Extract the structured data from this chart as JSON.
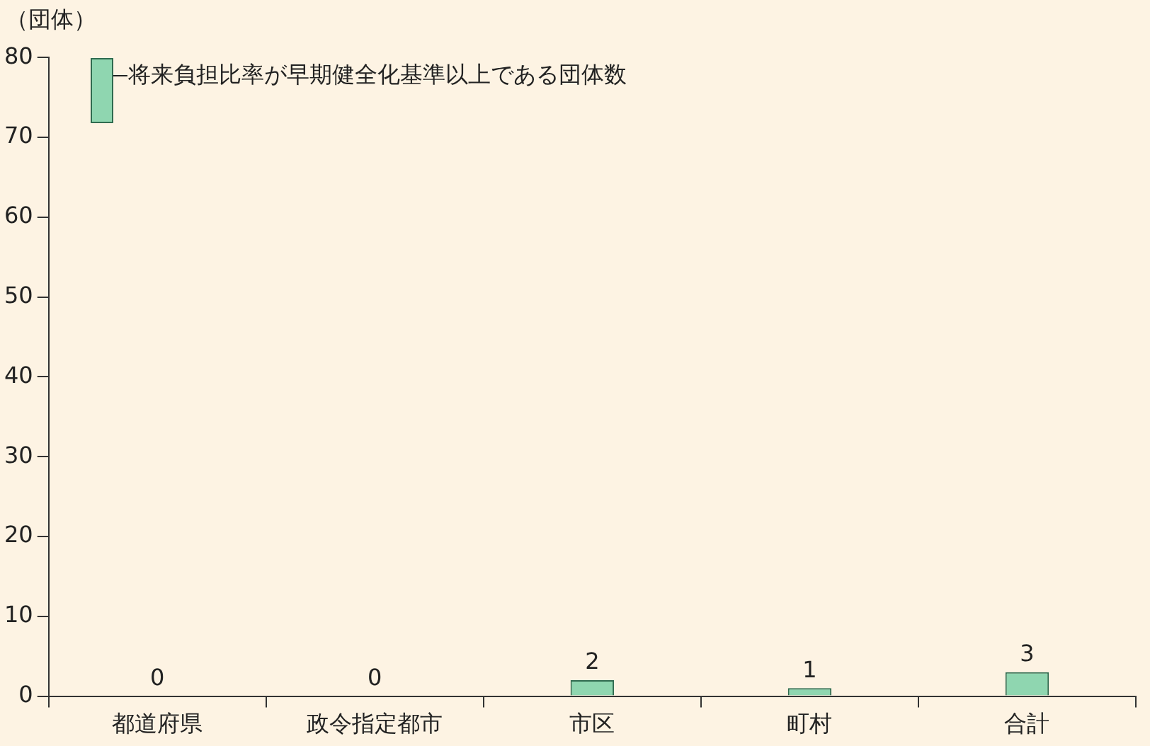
{
  "chart_data": {
    "type": "bar",
    "ylabel": "（団体）",
    "categories": [
      "都道府県",
      "政令指定都市",
      "市区",
      "町村",
      "合計"
    ],
    "series": [
      {
        "name": "将来負担比率が早期健全化基準以上である団体数",
        "color": "#8fd6b0",
        "values": [
          0,
          0,
          2,
          1,
          3
        ]
      }
    ],
    "ylim": [
      0,
      80
    ],
    "yticks": [
      0,
      10,
      20,
      30,
      40,
      50,
      60,
      70,
      80
    ],
    "data_labels": true,
    "legend": "top left"
  }
}
